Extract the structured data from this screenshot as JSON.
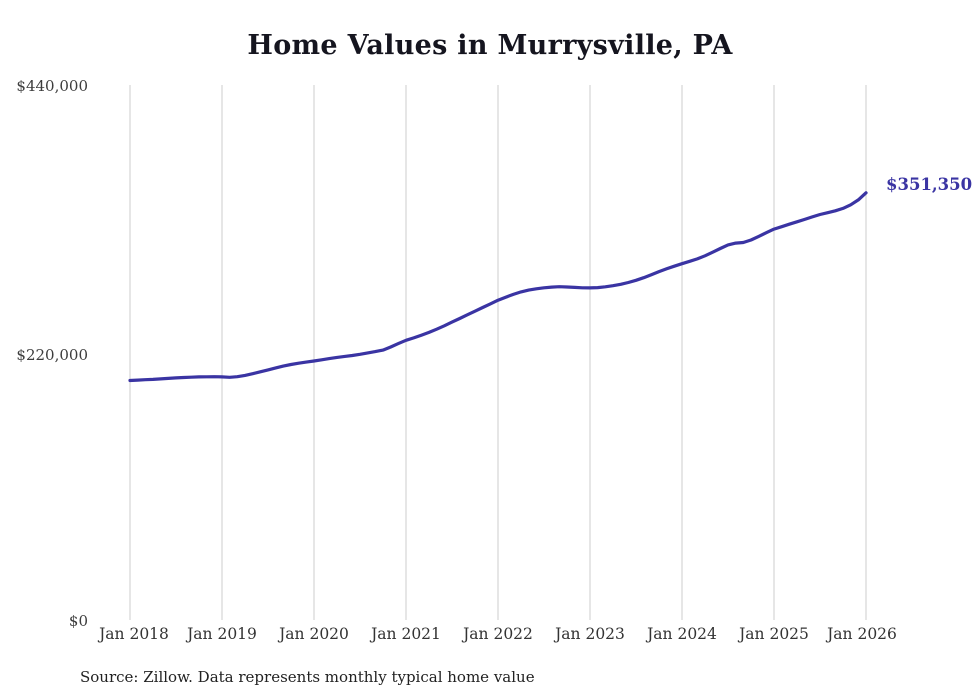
{
  "title": "Home Values in Murrysville, PA",
  "source_note": "Source: Zillow. Data represents monthly typical home value",
  "end_label": "$351,350",
  "colors": {
    "line": "#3a34a3",
    "grid": "#cccccc",
    "title_text": "#15151f",
    "axis_text": "#3d3d3d"
  },
  "y_axis": {
    "ticks": [
      "$0",
      "$220,000",
      "$440,000"
    ]
  },
  "x_axis": {
    "ticks": [
      "Jan 2018",
      "Jan 2019",
      "Jan 2020",
      "Jan 2021",
      "Jan 2022",
      "Jan 2023",
      "Jan 2024",
      "Jan 2025",
      "Jan 2026"
    ]
  },
  "chart_data": {
    "type": "line",
    "title": "Home Values in Murrysville, PA",
    "ylabel": "",
    "xlabel": "",
    "ylim": [
      0,
      440000
    ],
    "y_ticks": [
      0,
      220000,
      440000
    ],
    "x_start": "Jan 2018",
    "x_end": "Jan 2026",
    "frequency": "monthly",
    "grid": "vertical-only",
    "legend_position": "none",
    "final_value": 351350,
    "final_value_label": "$351,350",
    "series": [
      {
        "name": "Typical home value",
        "values": [
          197000,
          197300,
          197600,
          197900,
          198300,
          198700,
          199100,
          199400,
          199700,
          199900,
          200000,
          200100,
          199900,
          199600,
          200100,
          201200,
          202600,
          204100,
          205700,
          207300,
          208800,
          210100,
          211200,
          212100,
          213000,
          214000,
          215000,
          216000,
          216800,
          217500,
          218500,
          219700,
          220700,
          222000,
          224500,
          227300,
          230000,
          232000,
          234200,
          236500,
          239200,
          242000,
          245000,
          248000,
          251000,
          254000,
          257000,
          260000,
          263000,
          265500,
          267800,
          269800,
          271300,
          272400,
          273200,
          273800,
          274100,
          273900,
          273500,
          273200,
          273100,
          273400,
          274000,
          274900,
          276100,
          277600,
          279400,
          281500,
          284000,
          286500,
          288800,
          291000,
          293000,
          295000,
          297000,
          299500,
          302500,
          305500,
          308500,
          310000,
          310500,
          312500,
          315500,
          318500,
          321500,
          323500,
          325500,
          327500,
          329500,
          331500,
          333500,
          335000,
          336500,
          338500,
          341500,
          345500,
          351350
        ]
      }
    ]
  }
}
